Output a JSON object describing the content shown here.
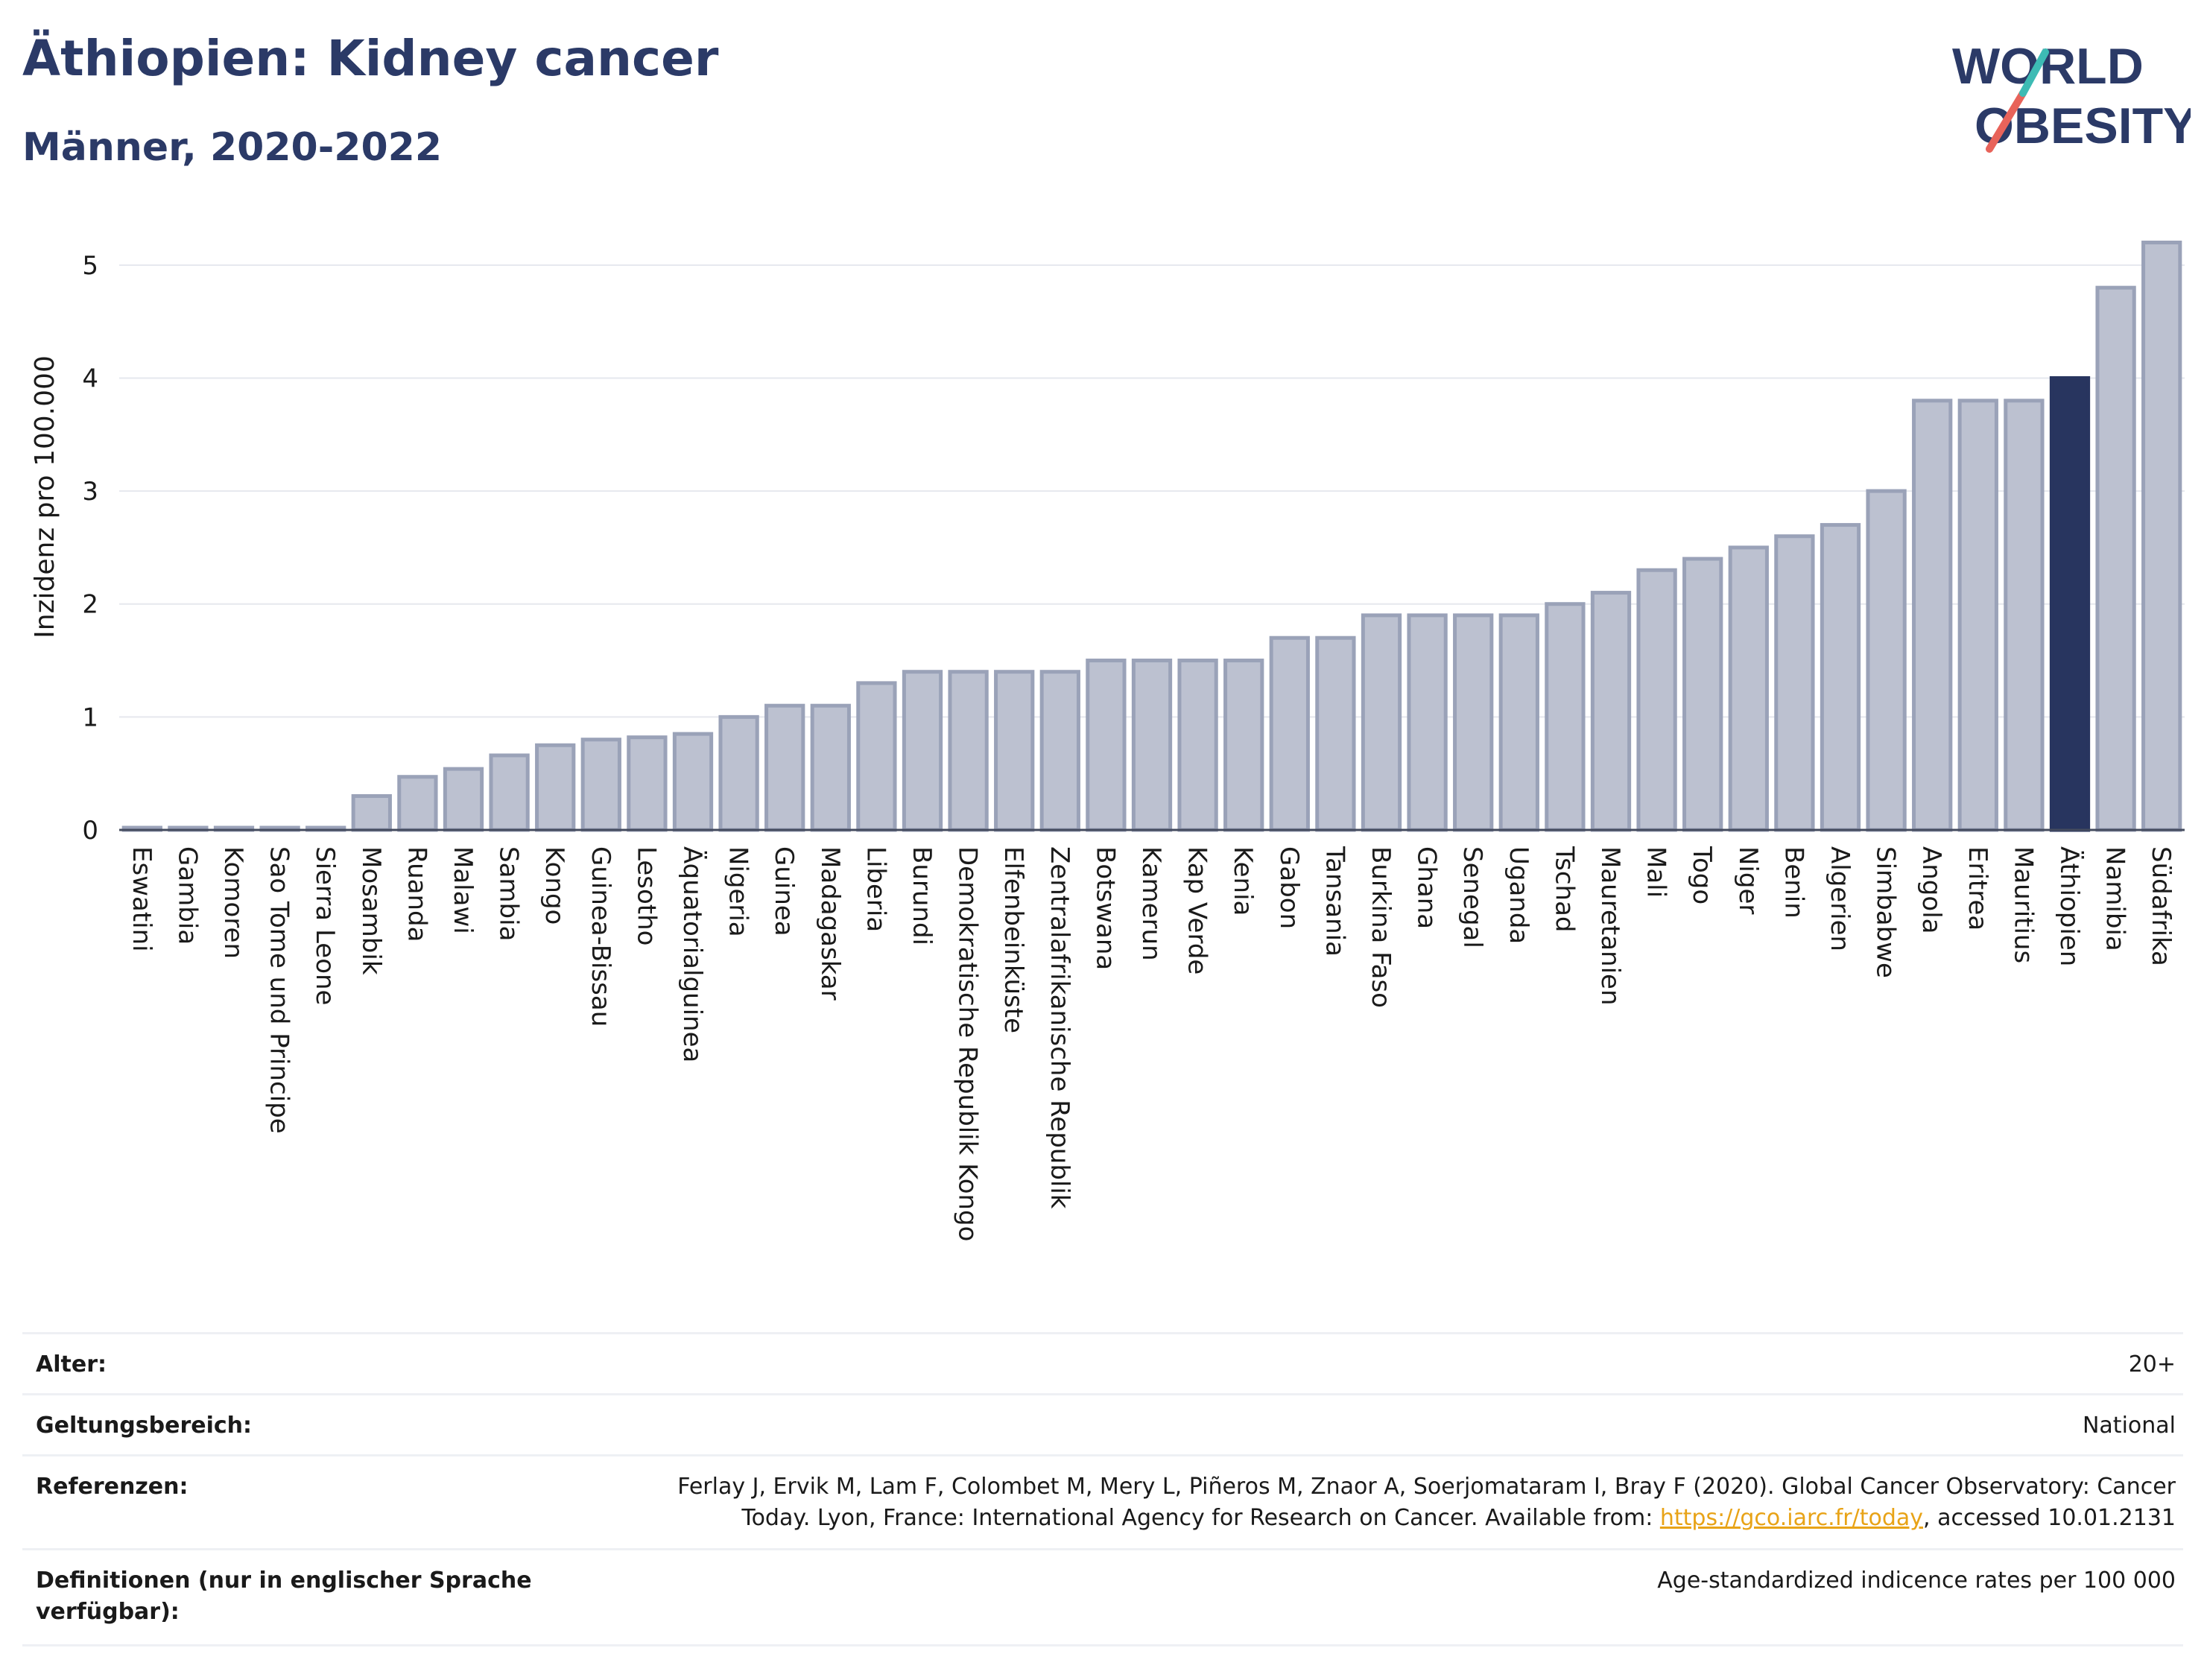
{
  "header": {
    "title": "Äthiopien: Kidney cancer",
    "subtitle": "Männer, 2020-2022"
  },
  "logo": {
    "line1": "WORLD",
    "line2": "OBESITY",
    "accent_color": "#e8635a",
    "accent2_color": "#3dbbb4"
  },
  "colors": {
    "bar": "#bcc1d0",
    "bar_edge": "#9aa2b8",
    "highlight": "#28355f",
    "grid": "#e6e8ee"
  },
  "chart_data": {
    "type": "bar",
    "ylabel": "Inzidenz pro 100.000",
    "ylim": [
      0,
      5.5
    ],
    "yticks": [
      0,
      1,
      2,
      3,
      4,
      5
    ],
    "highlight": "Äthiopien",
    "grid": true,
    "categories": [
      "Eswatini",
      "Gambia",
      "Komoren",
      "Sao Tome und Principe",
      "Sierra Leone",
      "Mosambik",
      "Ruanda",
      "Malawi",
      "Sambia",
      "Kongo",
      "Guinea-Bissau",
      "Lesotho",
      "Äquatorialguinea",
      "Nigeria",
      "Guinea",
      "Madagaskar",
      "Liberia",
      "Burundi",
      "Demokratische Republik Kongo",
      "Elfenbeinküste",
      "Zentralafrikanische Republik",
      "Botswana",
      "Kamerun",
      "Kap Verde",
      "Kenia",
      "Gabon",
      "Tansania",
      "Burkina Faso",
      "Ghana",
      "Senegal",
      "Uganda",
      "Tschad",
      "Mauretanien",
      "Mali",
      "Togo",
      "Niger",
      "Benin",
      "Algerien",
      "Simbabwe",
      "Angola",
      "Eritrea",
      "Mauritius",
      "Äthiopien",
      "Namibia",
      "Südafrika"
    ],
    "values": [
      0.02,
      0.02,
      0.02,
      0.02,
      0.02,
      0.3,
      0.47,
      0.54,
      0.66,
      0.75,
      0.8,
      0.82,
      0.85,
      1.0,
      1.1,
      1.1,
      1.3,
      1.4,
      1.4,
      1.4,
      1.4,
      1.5,
      1.5,
      1.5,
      1.5,
      1.7,
      1.7,
      1.9,
      1.9,
      1.9,
      1.9,
      2.0,
      2.1,
      2.3,
      2.4,
      2.5,
      2.6,
      2.7,
      3.0,
      3.8,
      3.8,
      3.8,
      4.0,
      4.8,
      5.2
    ]
  },
  "meta": {
    "age_label": "Alter:",
    "age_value": "20+",
    "scope_label": "Geltungsbereich:",
    "scope_value": "National",
    "ref_label": "Referenzen:",
    "ref_line1": "Ferlay J, Ervik M, Lam F, Colombet M, Mery L, Piñeros M, Znaor A, Soerjomataram I, Bray F (2020). Global Cancer Observatory: Cancer",
    "ref_line2_pre": "Today. Lyon, France: International Agency for Research on Cancer. Available from: ",
    "ref_link": "https://gco.iarc.fr/today",
    "ref_line2_post": ", accessed 10.01.2131",
    "def_label": "Definitionen (nur in englischer Sprache verfügbar):",
    "def_value": "Age-standardized indicence rates per 100 000"
  }
}
